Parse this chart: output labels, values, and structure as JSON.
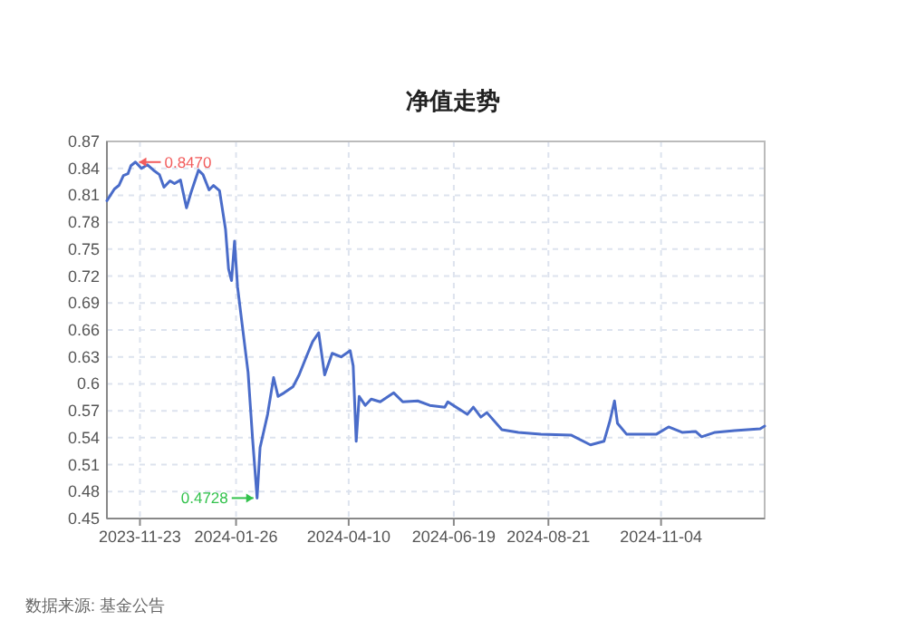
{
  "chart_data": {
    "type": "line",
    "title": "净值走势",
    "x": [
      "2023-11-01",
      "2023-11-06",
      "2023-11-09",
      "2023-11-12",
      "2023-11-15",
      "2023-11-17",
      "2023-11-20",
      "2023-11-24",
      "2023-11-28",
      "2023-12-02",
      "2023-12-06",
      "2023-12-09",
      "2023-12-13",
      "2023-12-16",
      "2023-12-20",
      "2023-12-24",
      "2023-12-27",
      "2024-01-01",
      "2024-01-04",
      "2024-01-08",
      "2024-01-11",
      "2024-01-15",
      "2024-01-19",
      "2024-01-21",
      "2024-01-23",
      "2024-01-25",
      "2024-01-27",
      "2024-01-30",
      "2024-02-03",
      "2024-02-06",
      "2024-02-09",
      "2024-02-11",
      "2024-02-16",
      "2024-02-20",
      "2024-02-23",
      "2024-02-27",
      "2024-03-04",
      "2024-03-08",
      "2024-03-13",
      "2024-03-17",
      "2024-03-21",
      "2024-03-25",
      "2024-03-30",
      "2024-04-05",
      "2024-04-11",
      "2024-04-13",
      "2024-04-15",
      "2024-04-17",
      "2024-04-21",
      "2024-04-25",
      "2024-05-01",
      "2024-05-10",
      "2024-05-16",
      "2024-05-26",
      "2024-06-03",
      "2024-06-13",
      "2024-06-15",
      "2024-06-28",
      "2024-07-02",
      "2024-07-07",
      "2024-07-11",
      "2024-07-21",
      "2024-08-01",
      "2024-08-16",
      "2024-09-05",
      "2024-09-18",
      "2024-09-27",
      "2024-10-01",
      "2024-10-04",
      "2024-10-06",
      "2024-10-12",
      "2024-11-01",
      "2024-11-09",
      "2024-11-18",
      "2024-11-27",
      "2024-12-01",
      "2024-12-10",
      "2024-12-23",
      "2025-01-09",
      "2025-01-12"
    ],
    "series": [
      {
        "color": "#4a6cc9",
        "values": [
          0.804,
          0.817,
          0.821,
          0.832,
          0.834,
          0.843,
          0.847,
          0.84,
          0.844,
          0.838,
          0.833,
          0.819,
          0.826,
          0.823,
          0.827,
          0.796,
          0.813,
          0.838,
          0.833,
          0.816,
          0.821,
          0.815,
          0.772,
          0.728,
          0.715,
          0.759,
          0.708,
          0.667,
          0.613,
          0.539,
          0.4728,
          0.529,
          0.566,
          0.607,
          0.586,
          0.59,
          0.597,
          0.61,
          0.631,
          0.647,
          0.657,
          0.61,
          0.634,
          0.63,
          0.637,
          0.62,
          0.536,
          0.586,
          0.576,
          0.583,
          0.58,
          0.59,
          0.58,
          0.581,
          0.576,
          0.574,
          0.58,
          0.566,
          0.574,
          0.563,
          0.568,
          0.549,
          0.546,
          0.544,
          0.543,
          0.532,
          0.536,
          0.559,
          0.581,
          0.556,
          0.544,
          0.544,
          0.552,
          0.546,
          0.547,
          0.541,
          0.546,
          0.548,
          0.55,
          0.553
        ]
      }
    ],
    "xlim": [
      "2023-11-01",
      "2025-01-12"
    ],
    "xticks": [
      {
        "value": "2023-11-23",
        "label": "2023-11-23"
      },
      {
        "value": "2024-01-26",
        "label": "2024-01-26"
      },
      {
        "value": "2024-04-10",
        "label": "2024-04-10"
      },
      {
        "value": "2024-06-19",
        "label": "2024-06-19"
      },
      {
        "value": "2024-08-21",
        "label": "2024-08-21"
      },
      {
        "value": "2024-11-04",
        "label": "2024-11-04"
      }
    ],
    "ylim": [
      0.45,
      0.87
    ],
    "yticks": [
      0.45,
      0.48,
      0.51,
      0.54,
      0.57,
      0.6,
      0.63,
      0.66,
      0.69,
      0.72,
      0.75,
      0.78,
      0.81,
      0.84,
      0.87
    ],
    "grid": true,
    "annotations": [
      {
        "text": "0.8470",
        "x": "2023-11-20",
        "y": 0.847
      },
      {
        "text": "0.4728",
        "x": "2024-02-09",
        "y": 0.4728
      },
      "数据来源: 基金公告"
    ]
  }
}
